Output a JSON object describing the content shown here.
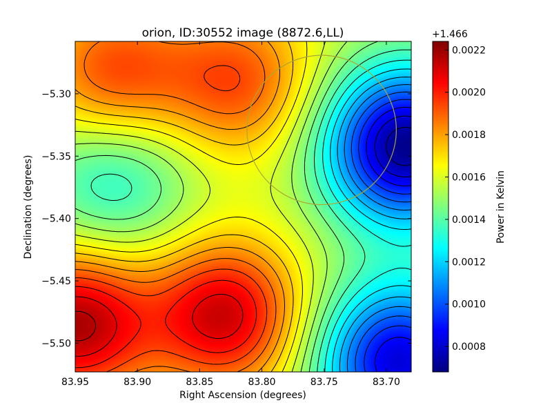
{
  "chart_data": {
    "type": "heatmap",
    "title": "orion, ID:30552 image (8872.6,LL)",
    "xlabel": "Right Ascension (degrees)",
    "ylabel": "Declination (degrees)",
    "xlim": [
      83.95,
      83.68
    ],
    "ylim": [
      -5.523,
      -5.258
    ],
    "x_ticks": [
      83.95,
      83.9,
      83.85,
      83.8,
      83.75,
      83.7
    ],
    "x_tick_labels": [
      "83.95",
      "83.90",
      "83.85",
      "83.80",
      "83.75",
      "83.70"
    ],
    "y_ticks": [
      -5.3,
      -5.35,
      -5.4,
      -5.45,
      -5.5
    ],
    "y_tick_labels": [
      "−5.30",
      "−5.35",
      "−5.40",
      "−5.45",
      "−5.50"
    ],
    "colormap": "jet",
    "colorbar": {
      "label": "Power in Kelvin",
      "offset_text": "+1.466",
      "range": [
        0.00068,
        0.00224
      ],
      "ticks": [
        0.0008,
        0.001,
        0.0012,
        0.0014,
        0.0016,
        0.0018,
        0.002,
        0.0022
      ],
      "tick_labels": [
        "0.0008",
        "0.0010",
        "0.0012",
        "0.0014",
        "0.0016",
        "0.0018",
        "0.0020",
        "0.0022"
      ]
    },
    "field_features": [
      {
        "kind": "minimum",
        "ra": 83.685,
        "dec": -5.342,
        "value": 0.0007
      },
      {
        "kind": "minimum",
        "ra": 83.92,
        "dec": -5.368,
        "value": 0.0013
      },
      {
        "kind": "maximum",
        "ra": 83.95,
        "dec": -5.485,
        "value": 0.00217
      },
      {
        "kind": "maximum",
        "ra": 83.83,
        "dec": -5.478,
        "value": 0.00212
      },
      {
        "kind": "maximum",
        "ra": 83.92,
        "dec": -5.285,
        "value": 0.00195
      },
      {
        "kind": "maximum",
        "ra": 83.82,
        "dec": -5.29,
        "value": 0.00193
      },
      {
        "kind": "minimum",
        "ra": 83.69,
        "dec": -5.515,
        "value": 0.00082
      }
    ],
    "beam_circle": {
      "center_ra": 83.752,
      "center_dec": -5.329,
      "radius_deg": 0.06,
      "color": "#a8a832"
    },
    "contour_color": "#000000"
  }
}
